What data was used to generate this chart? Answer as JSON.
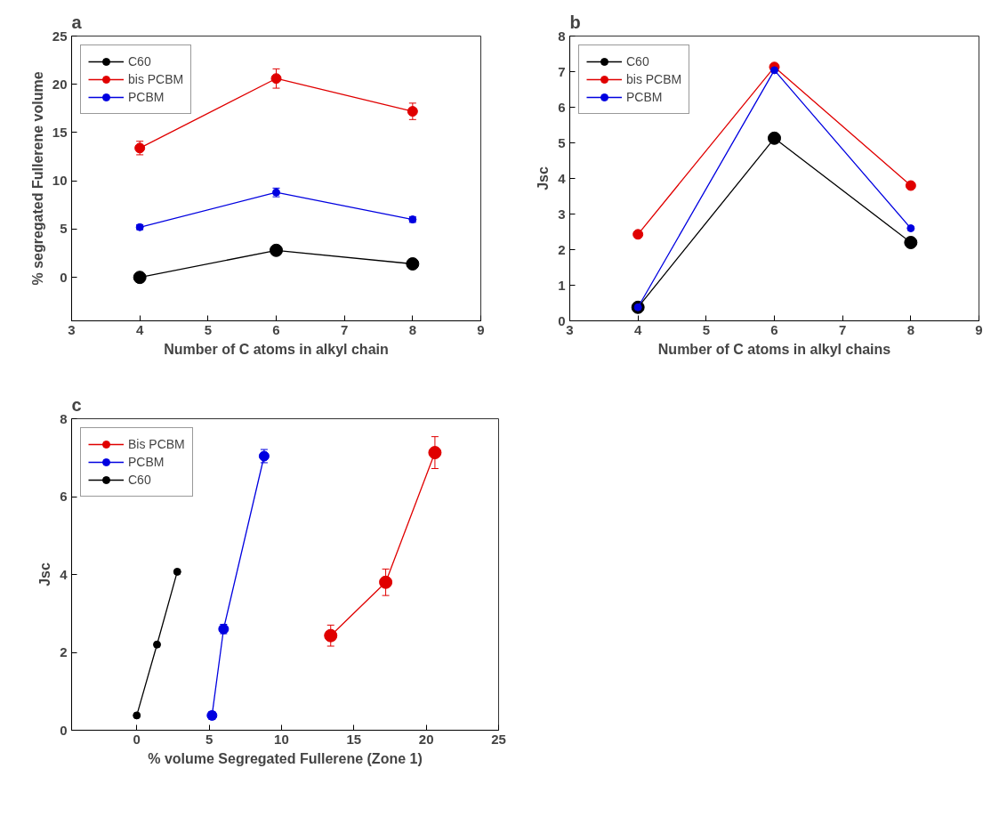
{
  "chart_data": [
    {
      "type": "line",
      "title": "a",
      "xlabel": "Number of C atoms in alkyl chain",
      "ylabel": "% segregated Fullerene volume",
      "x": [
        4,
        6,
        8
      ],
      "xlim": [
        3,
        9
      ],
      "xticks": [
        3,
        4,
        5,
        6,
        7,
        8,
        9
      ],
      "ylim": [
        -4.5,
        25
      ],
      "yticks": [
        0,
        5,
        10,
        15,
        20,
        25
      ],
      "grid": false,
      "legend": "top left",
      "marker": "circle",
      "line_style": "solid",
      "series": [
        {
          "name": "C60",
          "color": "#000000",
          "values": [
            0,
            2.8,
            1.4
          ]
        },
        {
          "name": "bis PCBM",
          "color": "#e00000",
          "values": [
            13.4,
            20.6,
            17.2
          ],
          "errors": [
            0.7,
            1.0,
            0.85
          ]
        },
        {
          "name": "PCBM",
          "color": "#0000e0",
          "values": [
            5.2,
            8.8,
            6.0
          ],
          "errors": [
            0.25,
            0.45,
            0.3
          ]
        }
      ]
    },
    {
      "type": "line",
      "title": "b",
      "xlabel": "Number of C atoms in alkyl chains",
      "ylabel": "Jsc",
      "x": [
        4,
        6,
        8
      ],
      "xlim": [
        3,
        9
      ],
      "xticks": [
        3,
        4,
        5,
        6,
        7,
        8,
        9
      ],
      "ylim": [
        0,
        8
      ],
      "yticks": [
        0,
        1,
        2,
        3,
        4,
        5,
        6,
        7,
        8
      ],
      "grid": false,
      "legend": "top left",
      "marker": "circle",
      "line_style": "solid",
      "series": [
        {
          "name": "C60",
          "color": "#000000",
          "values": [
            0.38,
            5.13,
            2.2
          ]
        },
        {
          "name": "bis PCBM",
          "color": "#e00000",
          "values": [
            2.43,
            7.13,
            3.8
          ]
        },
        {
          "name": "PCBM",
          "color": "#0000e0",
          "values": [
            0.38,
            7.04,
            2.6
          ]
        }
      ]
    },
    {
      "type": "line",
      "title": "c",
      "xlabel": "% volume Segregated Fullerene (Zone 1)",
      "ylabel": "Jsc",
      "xlim": [
        -4.5,
        25
      ],
      "xticks": [
        0,
        5,
        10,
        15,
        20,
        25
      ],
      "ylim": [
        0,
        8
      ],
      "yticks": [
        0,
        2,
        4,
        6,
        8
      ],
      "grid": false,
      "legend": "top left",
      "marker": "circle",
      "line_style": "solid",
      "series": [
        {
          "name": "Bis PCBM",
          "color": "#e00000",
          "x": [
            13.4,
            17.2,
            20.6
          ],
          "values": [
            2.43,
            3.8,
            7.13
          ],
          "errors": [
            0.27,
            0.34,
            0.41
          ]
        },
        {
          "name": "PCBM",
          "color": "#0000e0",
          "x": [
            5.2,
            6.0,
            8.8
          ],
          "values": [
            0.38,
            2.6,
            7.04
          ],
          "errors": [
            0.1,
            0.12,
            0.17
          ]
        },
        {
          "name": "C60",
          "color": "#000000",
          "x": [
            0,
            1.4,
            2.8
          ],
          "values": [
            0.38,
            2.2,
            4.07
          ],
          "xerrors": [
            null,
            0.15,
            0.15
          ]
        }
      ]
    }
  ]
}
